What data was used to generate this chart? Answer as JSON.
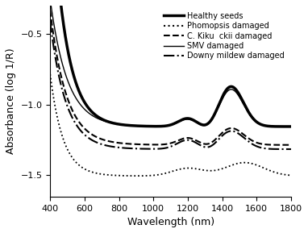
{
  "title": "",
  "xlabel": "Wavelength (nm)",
  "ylabel": "Absorbance (log 1/R)",
  "xlim": [
    400,
    1800
  ],
  "ylim": [
    -1.65,
    -0.3
  ],
  "yticks": [
    -1.5,
    -1.0,
    -0.5
  ],
  "xticks": [
    400,
    600,
    800,
    1000,
    1200,
    1400,
    1600,
    1800
  ],
  "legend": [
    {
      "label": "Healthy seeds",
      "ls": "solid",
      "lw": 2.5,
      "color": "black"
    },
    {
      "label": "Phomopsis damaged",
      "ls": "dotted",
      "lw": 1.5,
      "color": "black"
    },
    {
      "label": "C. Kiku  ckii damaged",
      "ls": "dashed",
      "lw": 1.5,
      "color": "black"
    },
    {
      "label": "SMV damaged",
      "ls": "solid",
      "lw": 1.0,
      "color": "black"
    },
    {
      "label": "Downy mildew damaged",
      "ls": "dashdot",
      "lw": 1.5,
      "color": "black"
    }
  ],
  "background_color": "#ffffff"
}
